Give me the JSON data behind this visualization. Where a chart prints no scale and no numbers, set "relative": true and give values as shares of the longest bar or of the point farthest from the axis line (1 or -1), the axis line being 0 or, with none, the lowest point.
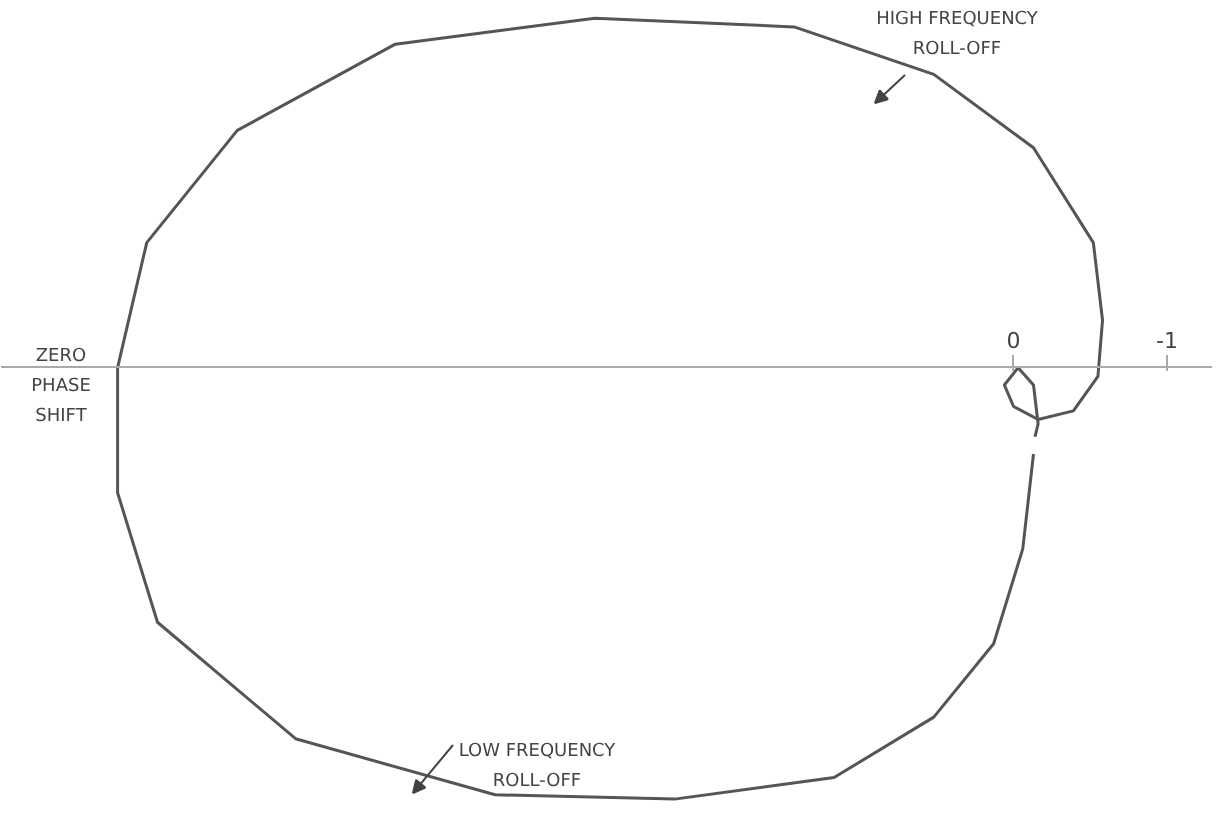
{
  "chart_data": {
    "type": "line",
    "relative": true,
    "color": "#555555",
    "xlim": [
      6.6,
      -1.3
    ],
    "xticks": [
      0,
      -1
    ],
    "marker": "none",
    "line_style": "solid",
    "x": [
      -0.13,
      -0.06,
      0.13,
      0.52,
      1.17,
      2.21,
      3.38,
      4.68,
      5.58,
      5.84,
      5.84,
      5.65,
      5.06,
      4.03,
      2.73,
      1.43,
      0.52,
      -0.13,
      -0.52,
      -0.58,
      -0.55,
      -0.39,
      -0.16,
      0,
      0.06,
      -0.03,
      -0.13,
      -0.16,
      -0.14
    ],
    "values": [
      -0.2,
      -0.42,
      -0.64,
      -0.81,
      -0.95,
      -1.0,
      -0.99,
      -0.86,
      -0.59,
      -0.29,
      0,
      0.29,
      0.55,
      0.75,
      0.81,
      0.79,
      0.68,
      0.51,
      0.29,
      0.11,
      -0.02,
      -0.1,
      -0.12,
      -0.09,
      -0.04,
      0,
      -0.04,
      -0.13,
      -0.16
    ],
    "annotations": [
      "HIGH FREQUENCY\nROLL-OFF",
      "ZERO\nPHASE\nSHIFT",
      "LOW FREQUENCY\nROLL-OFF"
    ]
  }
}
